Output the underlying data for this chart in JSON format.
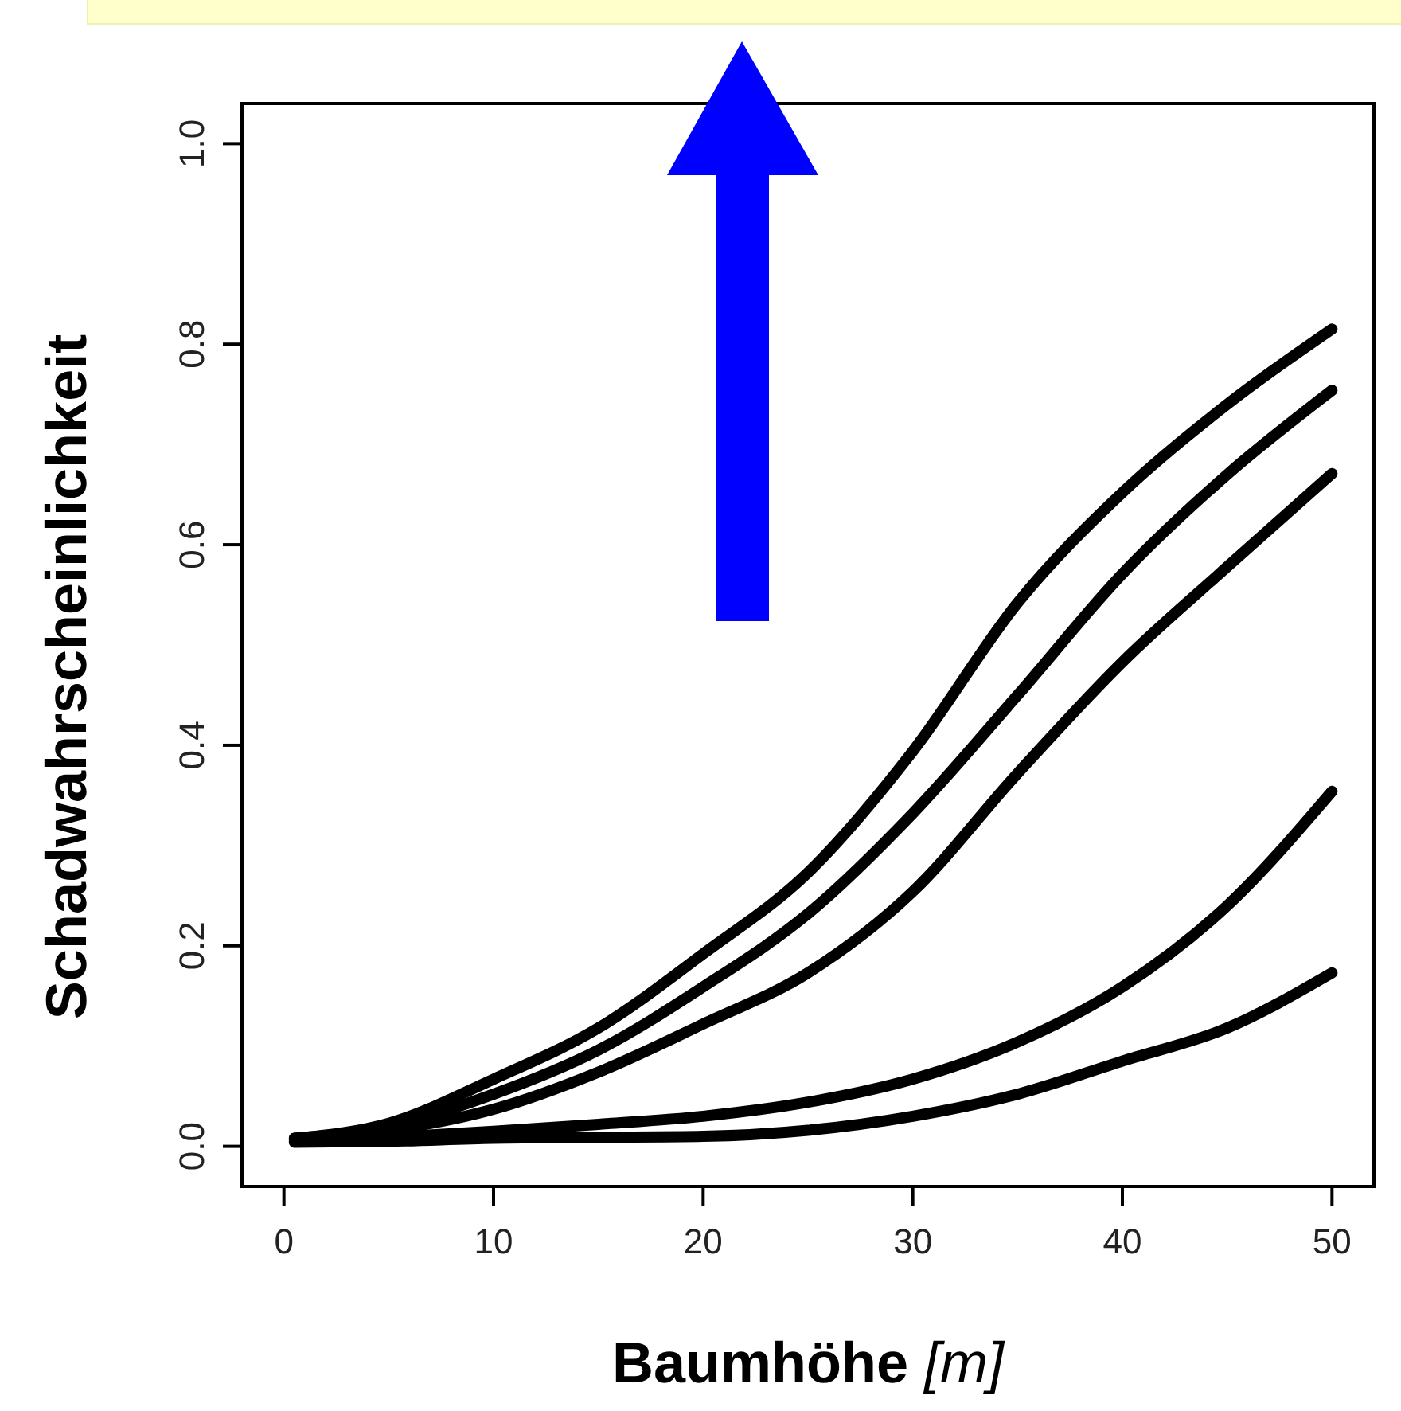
{
  "chart_data": {
    "type": "line",
    "xlabel": "Baumhöhe [m]",
    "ylabel": "Schadwahrscheinlichkeit",
    "x": [
      0.5,
      5,
      10,
      15,
      20,
      25,
      30,
      35,
      40,
      45,
      50
    ],
    "series": [
      {
        "color": "#000000",
        "values": [
          0.008,
          0.023,
          0.067,
          0.118,
          0.192,
          0.273,
          0.394,
          0.542,
          0.652,
          0.74,
          0.815
        ]
      },
      {
        "color": "#000000",
        "values": [
          0.008,
          0.02,
          0.052,
          0.096,
          0.159,
          0.232,
          0.332,
          0.45,
          0.571,
          0.67,
          0.754
        ]
      },
      {
        "color": "#000000",
        "values": [
          0.007,
          0.016,
          0.037,
          0.074,
          0.122,
          0.173,
          0.254,
          0.372,
          0.483,
          0.578,
          0.671
        ]
      },
      {
        "color": "#000000",
        "values": [
          0.005,
          0.009,
          0.015,
          0.022,
          0.03,
          0.044,
          0.067,
          0.104,
          0.159,
          0.24,
          0.354
        ]
      },
      {
        "color": "#000000",
        "values": [
          0.004,
          0.005,
          0.008,
          0.009,
          0.01,
          0.016,
          0.03,
          0.052,
          0.085,
          0.118,
          0.173
        ]
      }
    ],
    "xlim": [
      -2,
      52
    ],
    "ylim": [
      -0.04,
      1.04
    ],
    "xticks": [
      0,
      10,
      20,
      30,
      40,
      50
    ],
    "yticks": [
      {
        "value": 0,
        "label": "0.0"
      },
      {
        "value": 0.2,
        "label": "0.2"
      },
      {
        "value": 0.4,
        "label": "0.4"
      },
      {
        "value": 0.6,
        "label": "0.6"
      },
      {
        "value": 0.8,
        "label": "0.8"
      },
      {
        "value": 1,
        "label": "1.0"
      }
    ],
    "grid": false,
    "marker": "none",
    "line_style": "solid"
  }
}
